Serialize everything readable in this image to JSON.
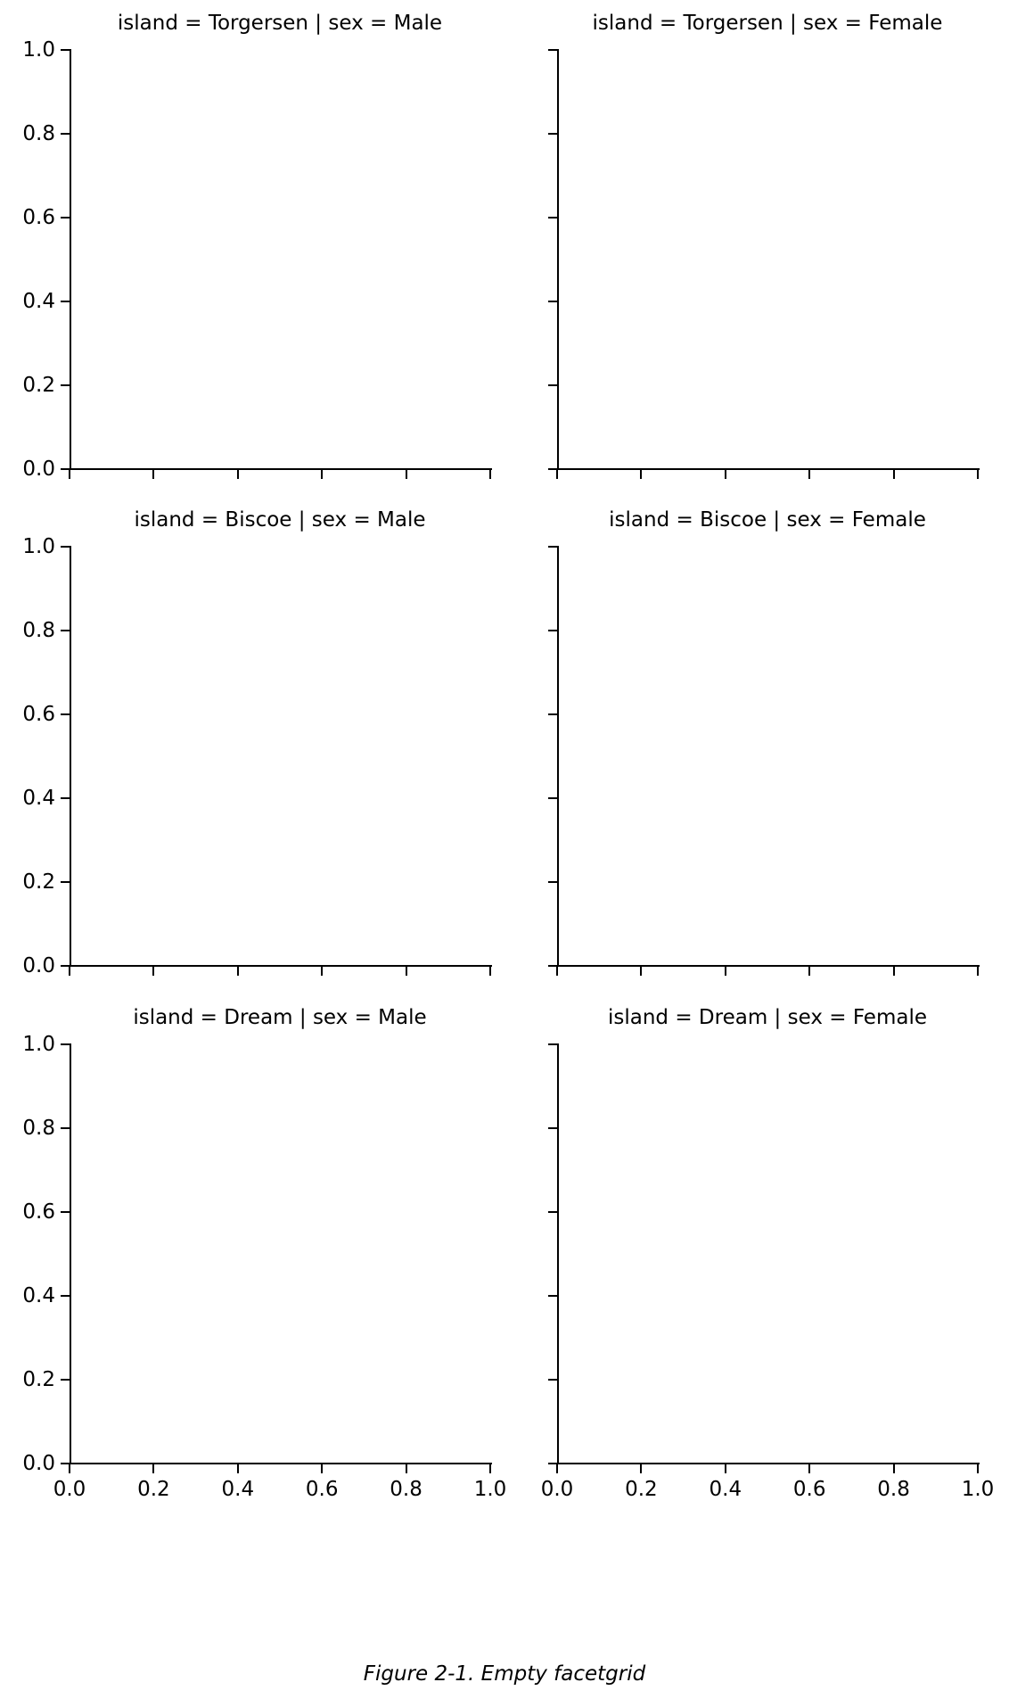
{
  "figure": {
    "caption": "Figure 2-1. Empty facetgrid"
  },
  "chart_data": {
    "type": "facet_grid",
    "row_variable": "island",
    "col_variable": "sex",
    "row_values": [
      "Torgersen",
      "Biscoe",
      "Dream"
    ],
    "col_values": [
      "Male",
      "Female"
    ],
    "facets": [
      {
        "row": 0,
        "col": 0,
        "title": "island = Torgersen | sex = Male",
        "series": []
      },
      {
        "row": 0,
        "col": 1,
        "title": "island = Torgersen | sex = Female",
        "series": []
      },
      {
        "row": 1,
        "col": 0,
        "title": "island = Biscoe | sex = Male",
        "series": []
      },
      {
        "row": 1,
        "col": 1,
        "title": "island = Biscoe | sex = Female",
        "series": []
      },
      {
        "row": 2,
        "col": 0,
        "title": "island = Dream | sex = Male",
        "series": []
      },
      {
        "row": 2,
        "col": 1,
        "title": "island = Dream | sex = Female",
        "series": []
      }
    ],
    "xlim": [
      0.0,
      1.0
    ],
    "ylim": [
      0.0,
      1.0
    ],
    "xtick_labels": [
      "0.0",
      "0.2",
      "0.4",
      "0.6",
      "0.8",
      "1.0"
    ],
    "ytick_labels": [
      "1.0",
      "0.8",
      "0.6",
      "0.4",
      "0.2",
      "0.0"
    ],
    "xlabel": "",
    "ylabel": "",
    "grid": false,
    "legend": null,
    "data_points": []
  },
  "colors": {
    "background": "#ffffff",
    "spine": "#000000",
    "text": "#000000"
  }
}
